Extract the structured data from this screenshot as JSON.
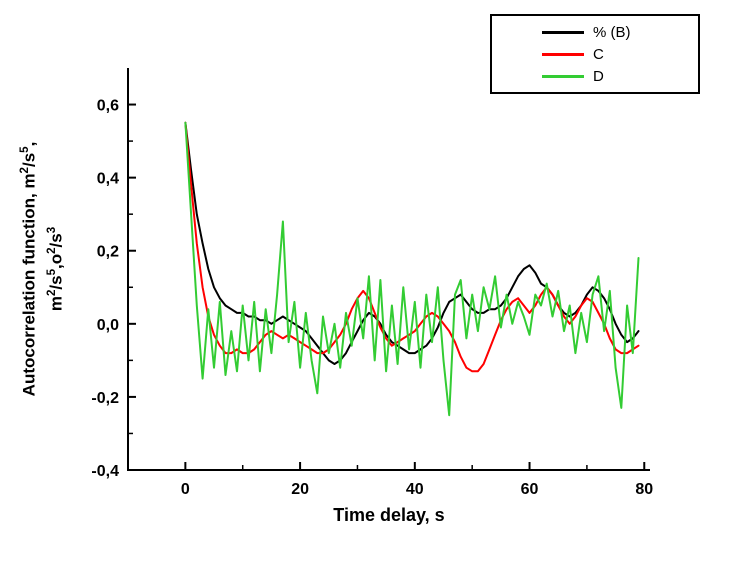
{
  "figure": {
    "background": "#ffffff"
  },
  "labels": {
    "y1": {
      "a": "Autocorrelation function, m",
      "b": "2",
      "c": "/s",
      "d": "5",
      "e": ","
    },
    "y2": {
      "a": "m",
      "b": "2",
      "c": "/s",
      "d": "5",
      "e": ",o",
      "f": "2",
      "g": "/s",
      "h": "3"
    }
  },
  "chart_data": {
    "type": "line",
    "title": "",
    "xlabel": "Time delay, s",
    "ylabel": "Autocorrelation function, m²/s⁵, m²/s⁵,o²/s³",
    "xlim": [
      -10,
      81
    ],
    "ylim": [
      -0.4,
      0.7
    ],
    "grid": false,
    "legend_position": "top-right",
    "x_ticks": {
      "values": [
        0,
        20,
        40,
        60,
        80
      ],
      "labels": [
        "0",
        "20",
        "40",
        "60",
        "80"
      ],
      "minor": [
        10,
        30,
        50,
        70
      ]
    },
    "y_ticks": {
      "values": [
        0.6,
        0.4,
        0.2,
        0.0,
        -0.2,
        -0.4
      ],
      "labels": [
        "0,6",
        "0,4",
        "0,2",
        "0,0",
        "-0,2",
        "-0,4"
      ],
      "minor": [
        0.5,
        0.3,
        0.1,
        -0.1,
        -0.3
      ]
    },
    "x": [
      0,
      1,
      2,
      3,
      4,
      5,
      6,
      7,
      8,
      9,
      10,
      11,
      12,
      13,
      14,
      15,
      16,
      17,
      18,
      19,
      20,
      21,
      22,
      23,
      24,
      25,
      26,
      27,
      28,
      29,
      30,
      31,
      32,
      33,
      34,
      35,
      36,
      37,
      38,
      39,
      40,
      41,
      42,
      43,
      44,
      45,
      46,
      47,
      48,
      49,
      50,
      51,
      52,
      53,
      54,
      55,
      56,
      57,
      58,
      59,
      60,
      61,
      62,
      63,
      64,
      65,
      66,
      67,
      68,
      69,
      70,
      71,
      72,
      73,
      74,
      75,
      76,
      77,
      78,
      79
    ],
    "series": [
      {
        "name": "% (B)",
        "color": "#000000",
        "values": [
          0.55,
          0.42,
          0.3,
          0.22,
          0.15,
          0.1,
          0.07,
          0.05,
          0.04,
          0.03,
          0.03,
          0.02,
          0.02,
          0.01,
          0.01,
          0.0,
          0.01,
          0.02,
          0.01,
          0.0,
          -0.01,
          -0.02,
          -0.04,
          -0.06,
          -0.08,
          -0.1,
          -0.11,
          -0.1,
          -0.08,
          -0.05,
          -0.02,
          0.01,
          0.03,
          0.02,
          0.0,
          -0.03,
          -0.05,
          -0.06,
          -0.07,
          -0.08,
          -0.08,
          -0.07,
          -0.06,
          -0.04,
          -0.01,
          0.03,
          0.06,
          0.07,
          0.08,
          0.06,
          0.04,
          0.03,
          0.03,
          0.04,
          0.04,
          0.05,
          0.07,
          0.1,
          0.13,
          0.15,
          0.16,
          0.14,
          0.11,
          0.1,
          0.08,
          0.05,
          0.03,
          0.02,
          0.03,
          0.05,
          0.08,
          0.1,
          0.09,
          0.07,
          0.04,
          0.0,
          -0.03,
          -0.05,
          -0.04,
          -0.02
        ]
      },
      {
        "name": "C",
        "color": "#ff0000",
        "values": [
          0.55,
          0.38,
          0.22,
          0.1,
          0.02,
          -0.03,
          -0.06,
          -0.08,
          -0.08,
          -0.07,
          -0.08,
          -0.08,
          -0.07,
          -0.05,
          -0.03,
          -0.02,
          -0.03,
          -0.04,
          -0.03,
          -0.04,
          -0.05,
          -0.06,
          -0.07,
          -0.08,
          -0.08,
          -0.07,
          -0.05,
          -0.03,
          0.0,
          0.04,
          0.07,
          0.09,
          0.07,
          0.03,
          -0.01,
          -0.04,
          -0.06,
          -0.05,
          -0.04,
          -0.03,
          -0.02,
          0.0,
          0.02,
          0.03,
          0.02,
          0.0,
          -0.02,
          -0.05,
          -0.09,
          -0.12,
          -0.13,
          -0.13,
          -0.11,
          -0.07,
          -0.03,
          0.01,
          0.04,
          0.06,
          0.07,
          0.05,
          0.03,
          0.05,
          0.08,
          0.1,
          0.08,
          0.05,
          0.02,
          0.0,
          0.02,
          0.05,
          0.07,
          0.06,
          0.03,
          0.0,
          -0.04,
          -0.07,
          -0.08,
          -0.08,
          -0.07,
          -0.06
        ]
      },
      {
        "name": "D",
        "color": "#33cc33",
        "values": [
          0.55,
          0.3,
          0.05,
          -0.15,
          0.04,
          -0.12,
          0.06,
          -0.14,
          -0.02,
          -0.13,
          0.05,
          -0.1,
          0.06,
          -0.13,
          0.04,
          -0.08,
          0.08,
          0.28,
          -0.05,
          0.06,
          -0.12,
          0.03,
          -0.1,
          -0.19,
          0.02,
          -0.08,
          0.0,
          -0.12,
          0.03,
          -0.06,
          0.07,
          -0.04,
          0.13,
          -0.1,
          0.12,
          -0.13,
          0.05,
          -0.11,
          0.1,
          -0.07,
          0.06,
          -0.12,
          0.08,
          -0.05,
          0.1,
          -0.1,
          -0.25,
          0.08,
          0.12,
          -0.04,
          0.08,
          -0.02,
          0.1,
          0.04,
          0.13,
          -0.01,
          0.08,
          0.0,
          0.06,
          0.02,
          -0.03,
          0.08,
          0.05,
          0.11,
          0.02,
          0.09,
          -0.02,
          0.05,
          -0.08,
          0.03,
          -0.05,
          0.08,
          0.13,
          -0.02,
          0.09,
          -0.12,
          -0.23,
          0.05,
          -0.08,
          0.18
        ]
      }
    ]
  }
}
